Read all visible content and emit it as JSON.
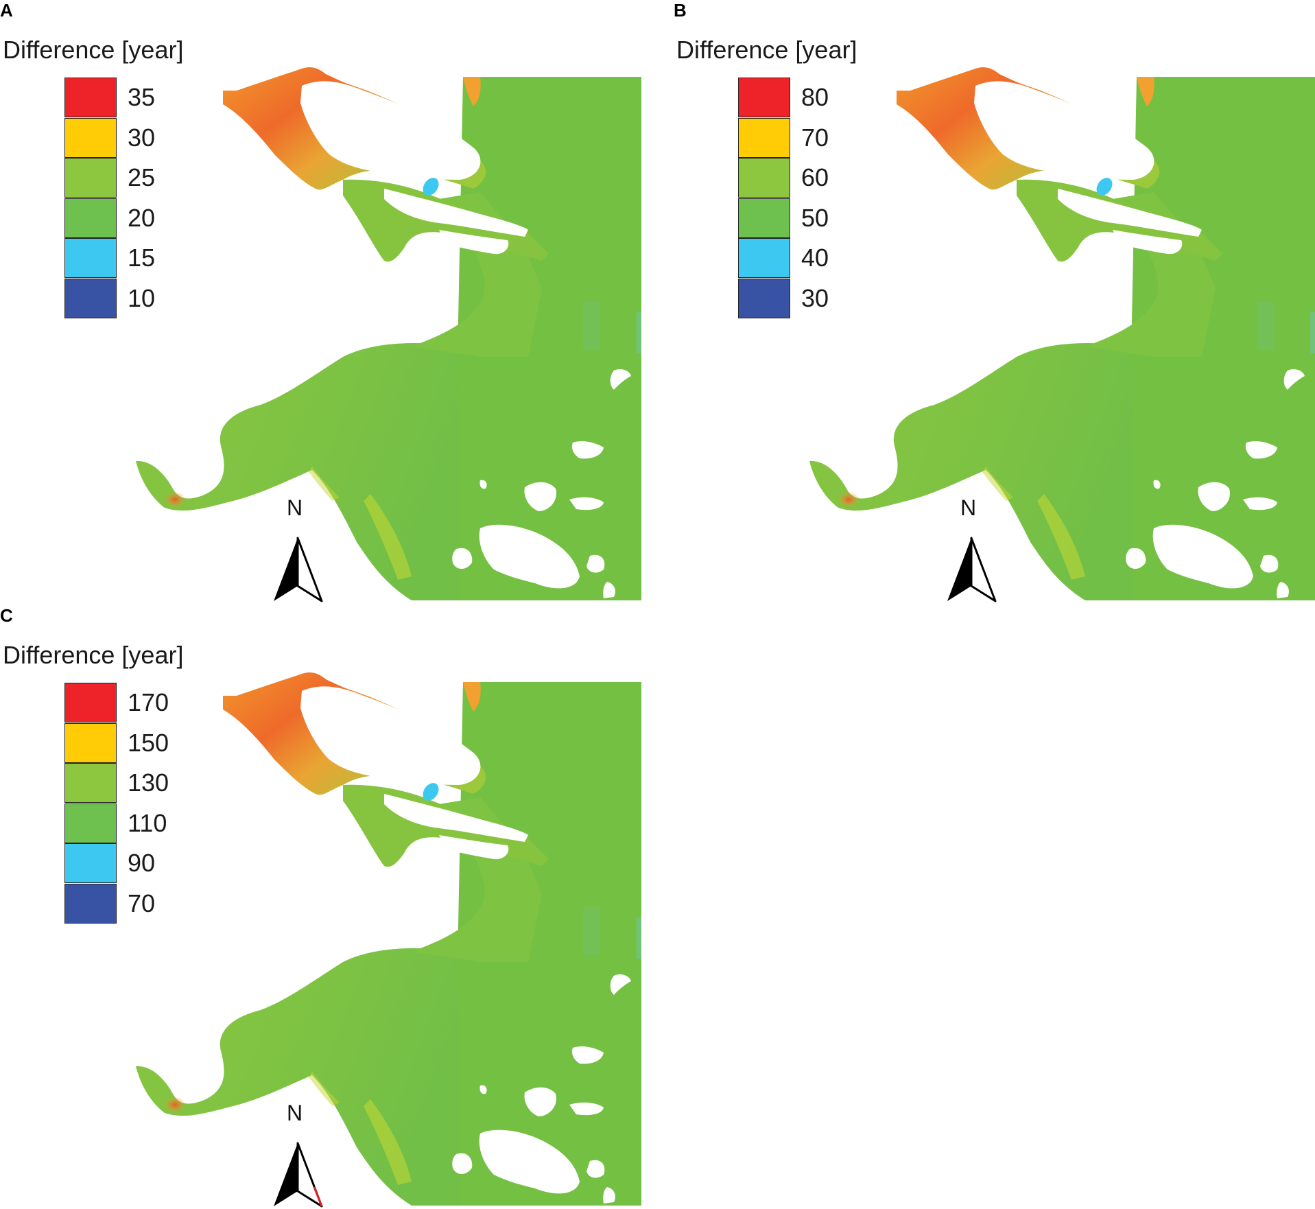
{
  "panels": [
    {
      "id": "A",
      "letter": "A",
      "legend": {
        "title": "Difference [year]",
        "entries": [
          {
            "label": "35",
            "color": "#ee2229"
          },
          {
            "label": "30",
            "color": "#ffcc05"
          },
          {
            "label": "25",
            "color": "#8dc63f"
          },
          {
            "label": "20",
            "color": "#6ec04f"
          },
          {
            "label": "15",
            "color": "#3cc8f0"
          },
          {
            "label": "10",
            "color": "#3953a4"
          }
        ]
      },
      "north_label": "N"
    },
    {
      "id": "B",
      "letter": "B",
      "legend": {
        "title": "Difference [year]",
        "entries": [
          {
            "label": "80",
            "color": "#ee2229"
          },
          {
            "label": "70",
            "color": "#ffcc05"
          },
          {
            "label": "60",
            "color": "#8dc63f"
          },
          {
            "label": "50",
            "color": "#6ec04f"
          },
          {
            "label": "40",
            "color": "#3cc8f0"
          },
          {
            "label": "30",
            "color": "#3953a4"
          }
        ]
      },
      "north_label": "N"
    },
    {
      "id": "C",
      "letter": "C",
      "legend": {
        "title": "Difference [year]",
        "entries": [
          {
            "label": "170",
            "color": "#ee2229"
          },
          {
            "label": "150",
            "color": "#ffcc05"
          },
          {
            "label": "130",
            "color": "#8dc63f"
          },
          {
            "label": "110",
            "color": "#6ec04f"
          },
          {
            "label": "90",
            "color": "#3cc8f0"
          },
          {
            "label": "70",
            "color": "#3953a4"
          }
        ]
      },
      "north_label": "N"
    }
  ],
  "colors": {
    "water_base": "#74c043",
    "water_light": "#92c83e",
    "hot": "#ee6a2a",
    "warm": "#f2a530",
    "cool": "#3cc8f0"
  }
}
